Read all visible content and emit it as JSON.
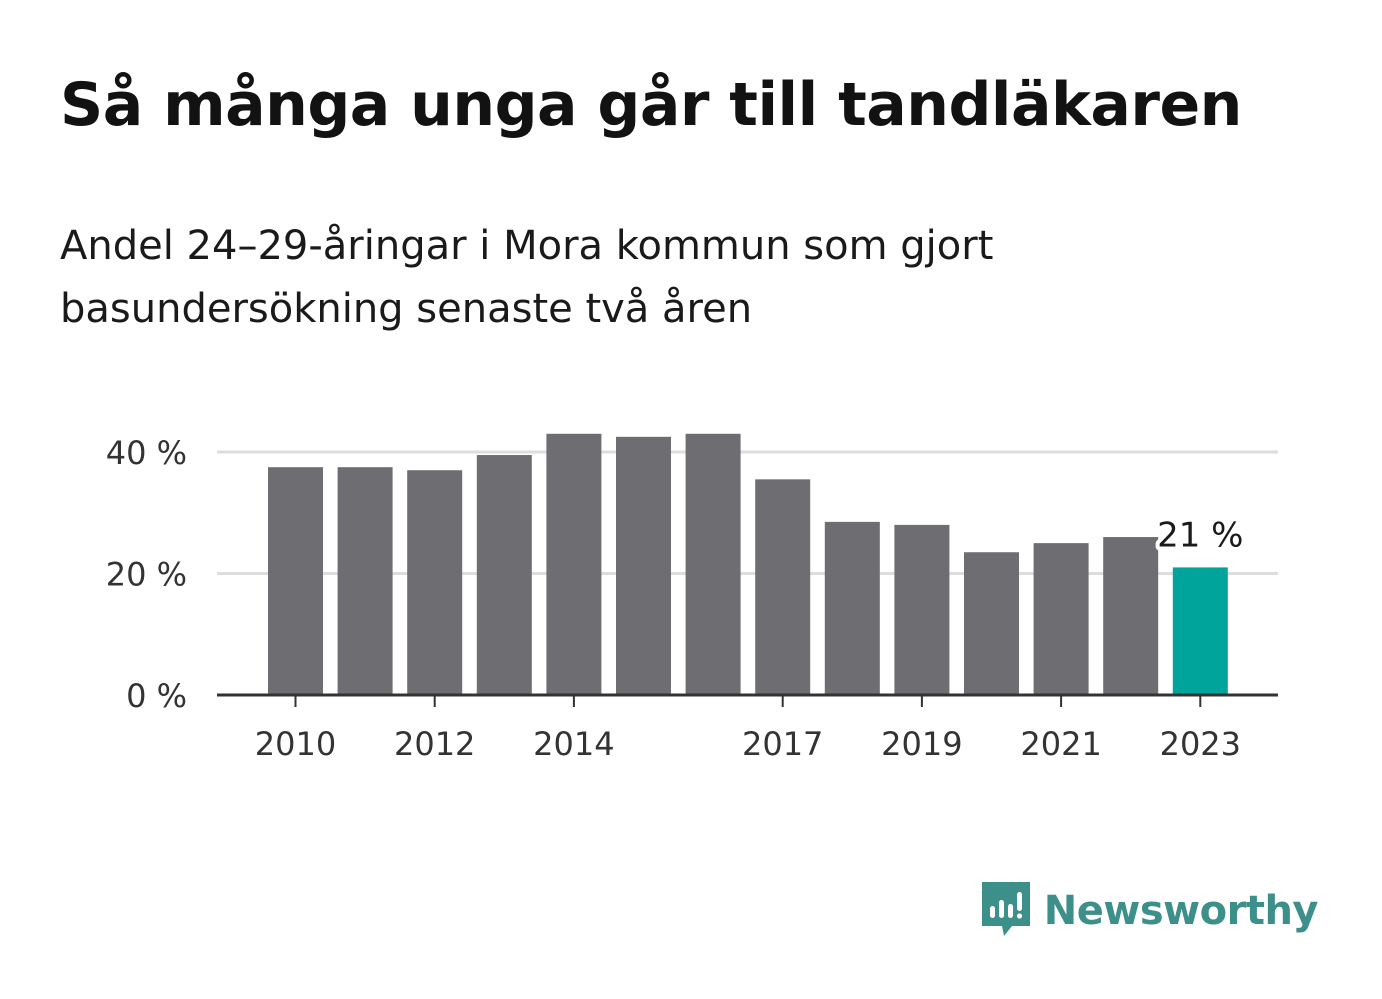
{
  "title": "Så många unga går till tandläkaren",
  "subtitle": "Andel 24–29-åringar i Mora kommun som gjort basundersökning senaste två åren",
  "brand": {
    "name": "Newsworthy",
    "color": "#3d8f8a",
    "icon": "bar-chart-speech-bubble-icon"
  },
  "colors": {
    "bar": "#6e6d72",
    "highlight": "#00a49a",
    "grid": "#dddddd",
    "axis": "#333333"
  },
  "chart_data": {
    "type": "bar",
    "categories": [
      "2010",
      "2011",
      "2012",
      "2013",
      "2014",
      "2015",
      "2016",
      "2017",
      "2018",
      "2019",
      "2020",
      "2021",
      "2022",
      "2023"
    ],
    "values": [
      37.5,
      37.5,
      37,
      39.5,
      43,
      42.5,
      43,
      35.5,
      28.5,
      28,
      23.5,
      25,
      26,
      21
    ],
    "highlight_index": 13,
    "data_labels": [
      {
        "index": 13,
        "text": "21 %"
      }
    ],
    "x_tick_labels": [
      "2010",
      "2012",
      "2014",
      "2017",
      "2019",
      "2021",
      "2023"
    ],
    "y_ticks": [
      0,
      20,
      40
    ],
    "y_tick_labels": [
      "0 %",
      "20 %",
      "40 %"
    ],
    "ylim": [
      0,
      40
    ],
    "grid": true,
    "xlabel": "",
    "ylabel": ""
  }
}
